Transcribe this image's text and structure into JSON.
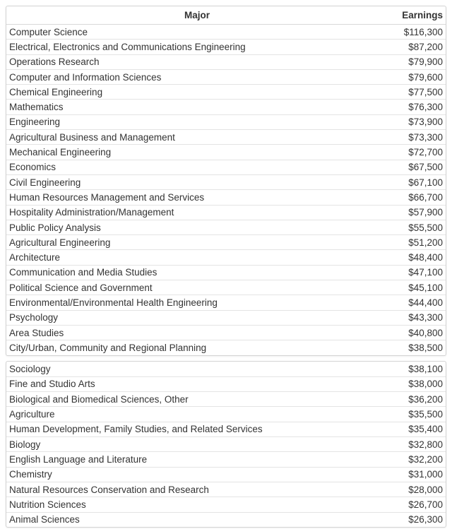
{
  "table": {
    "header": {
      "major": "Major",
      "earnings": "Earnings"
    },
    "colors": {
      "card_border": "#d3d3d3",
      "row_divider": "#e4e4e4",
      "header_divider": "#d8d8d8",
      "text": "#333333",
      "background": "#ffffff"
    },
    "sections": [
      {
        "rows": [
          {
            "major": "Computer Science",
            "earnings": "$116,300"
          },
          {
            "major": "Electrical, Electronics and Communications Engineering",
            "earnings": "$87,200"
          },
          {
            "major": "Operations Research",
            "earnings": "$79,900"
          },
          {
            "major": "Computer and Information Sciences",
            "earnings": "$79,600"
          },
          {
            "major": "Chemical Engineering",
            "earnings": "$77,500"
          },
          {
            "major": "Mathematics",
            "earnings": "$76,300"
          },
          {
            "major": "Engineering",
            "earnings": "$73,900"
          },
          {
            "major": "Agricultural Business and Management",
            "earnings": "$73,300"
          },
          {
            "major": "Mechanical Engineering",
            "earnings": "$72,700"
          },
          {
            "major": "Economics",
            "earnings": "$67,500"
          },
          {
            "major": "Civil Engineering",
            "earnings": "$67,100"
          },
          {
            "major": "Human Resources Management and Services",
            "earnings": "$66,700"
          },
          {
            "major": "Hospitality Administration/Management",
            "earnings": "$57,900"
          },
          {
            "major": "Public Policy Analysis",
            "earnings": "$55,500"
          },
          {
            "major": "Agricultural Engineering",
            "earnings": "$51,200"
          },
          {
            "major": "Architecture",
            "earnings": "$48,400"
          },
          {
            "major": "Communication and Media Studies",
            "earnings": "$47,100"
          },
          {
            "major": "Political Science and Government",
            "earnings": "$45,100"
          },
          {
            "major": "Environmental/Environmental Health Engineering",
            "earnings": "$44,400"
          },
          {
            "major": "Psychology",
            "earnings": "$43,300"
          },
          {
            "major": "Area Studies",
            "earnings": "$40,800"
          },
          {
            "major": "City/Urban, Community and Regional Planning",
            "earnings": "$38,500"
          }
        ]
      },
      {
        "rows": [
          {
            "major": "Sociology",
            "earnings": "$38,100"
          },
          {
            "major": "Fine and Studio Arts",
            "earnings": "$38,000"
          },
          {
            "major": "Biological and Biomedical Sciences, Other",
            "earnings": "$36,200"
          },
          {
            "major": "Agriculture",
            "earnings": "$35,500"
          },
          {
            "major": "Human Development, Family Studies, and Related Services",
            "earnings": "$35,400"
          },
          {
            "major": "Biology",
            "earnings": "$32,800"
          },
          {
            "major": "English Language and Literature",
            "earnings": "$32,200"
          },
          {
            "major": "Chemistry",
            "earnings": "$31,000"
          },
          {
            "major": "Natural Resources Conservation and Research",
            "earnings": "$28,000"
          },
          {
            "major": "Nutrition Sciences",
            "earnings": "$26,700"
          },
          {
            "major": "Animal Sciences",
            "earnings": "$26,300"
          }
        ]
      }
    ]
  },
  "chart_data": {
    "type": "table",
    "title": "",
    "columns": [
      "Major",
      "Earnings"
    ],
    "rows": [
      [
        "Computer Science",
        116300
      ],
      [
        "Electrical, Electronics and Communications Engineering",
        87200
      ],
      [
        "Operations Research",
        79900
      ],
      [
        "Computer and Information Sciences",
        79600
      ],
      [
        "Chemical Engineering",
        77500
      ],
      [
        "Mathematics",
        76300
      ],
      [
        "Engineering",
        73900
      ],
      [
        "Agricultural Business and Management",
        73300
      ],
      [
        "Mechanical Engineering",
        72700
      ],
      [
        "Economics",
        67500
      ],
      [
        "Civil Engineering",
        67100
      ],
      [
        "Human Resources Management and Services",
        66700
      ],
      [
        "Hospitality Administration/Management",
        57900
      ],
      [
        "Public Policy Analysis",
        55500
      ],
      [
        "Agricultural Engineering",
        51200
      ],
      [
        "Architecture",
        48400
      ],
      [
        "Communication and Media Studies",
        47100
      ],
      [
        "Political Science and Government",
        45100
      ],
      [
        "Environmental/Environmental Health Engineering",
        44400
      ],
      [
        "Psychology",
        43300
      ],
      [
        "Area Studies",
        40800
      ],
      [
        "City/Urban, Community and Regional Planning",
        38500
      ],
      [
        "Sociology",
        38100
      ],
      [
        "Fine and Studio Arts",
        38000
      ],
      [
        "Biological and Biomedical Sciences, Other",
        36200
      ],
      [
        "Agriculture",
        35500
      ],
      [
        "Human Development, Family Studies, and Related Services",
        35400
      ],
      [
        "Biology",
        32800
      ],
      [
        "English Language and Literature",
        32200
      ],
      [
        "Chemistry",
        31000
      ],
      [
        "Natural Resources Conservation and Research",
        28000
      ],
      [
        "Nutrition Sciences",
        26700
      ],
      [
        "Animal Sciences",
        26300
      ]
    ],
    "notes": "Two stacked table sections: rows 1-22 in first card, rows 23-33 in second card; only first card has a header row."
  }
}
